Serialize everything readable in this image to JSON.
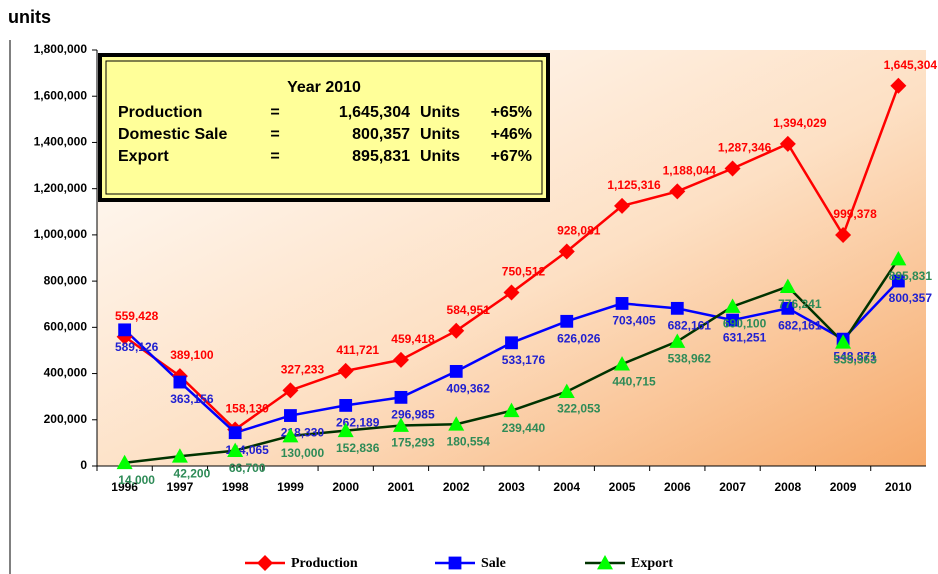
{
  "chart_data": {
    "type": "line",
    "y_label": "units",
    "categories": [
      "1996",
      "1997",
      "1998",
      "1999",
      "2000",
      "2001",
      "2002",
      "2003",
      "2004",
      "2005",
      "2006",
      "2007",
      "2008",
      "2009",
      "2010"
    ],
    "series": [
      {
        "name": "Production",
        "color": "#ff0000",
        "marker": "diamond",
        "label_color": "#ff0000",
        "values": [
          559428,
          389100,
          158130,
          327233,
          411721,
          459418,
          584951,
          750512,
          928081,
          1125316,
          1188044,
          1287346,
          1394029,
          999378,
          1645304
        ],
        "value_labels": [
          "559,428",
          "389,100",
          "158,130",
          "327,233",
          "411,721",
          "459,418",
          "584,951",
          "750,512",
          "928,081",
          "1,125,316",
          "1,188,044",
          "1,287,346",
          "1,394,029",
          "999,378",
          "1,645,304"
        ]
      },
      {
        "name": "Sale",
        "color": "#0000ff",
        "marker": "square",
        "label_color": "#2020d0",
        "values": [
          589126,
          363156,
          144065,
          218330,
          262189,
          296985,
          409362,
          533176,
          626026,
          703405,
          682161,
          631251,
          682161,
          548871,
          800357
        ],
        "value_labels": [
          "589,126",
          "363,156",
          "144,065",
          "218,330",
          "262,189",
          "296,985",
          "409,362",
          "533,176",
          "626,026",
          "703,405",
          "682,161",
          "631,251",
          "682,161",
          "548,871",
          "800,357"
        ]
      },
      {
        "name": "Export",
        "color": "#003300",
        "marker": "triangle",
        "marker_color": "#00ff00",
        "label_color": "#2e8b57",
        "values": [
          14000,
          42200,
          66700,
          130000,
          152836,
          175293,
          180554,
          239440,
          322053,
          440715,
          538962,
          690100,
          776241,
          535563,
          895831
        ],
        "value_labels": [
          "14,000",
          "42,200",
          "66,700",
          "130,000",
          "152,836",
          "175,293",
          "180,554",
          "239,440",
          "322,053",
          "440,715",
          "538,962",
          "690,100",
          "776,241",
          "535,563",
          "895,831"
        ]
      }
    ],
    "ylim": [
      0,
      1800000
    ],
    "yticks": [
      {
        "value": 0,
        "label": "0"
      },
      {
        "value": 200000,
        "label": "200,000"
      },
      {
        "value": 400000,
        "label": "400,000"
      },
      {
        "value": 600000,
        "label": "600,000"
      },
      {
        "value": 800000,
        "label": "800,000"
      },
      {
        "value": 1000000,
        "label": "1,000,000"
      },
      {
        "value": 1200000,
        "label": "1,200,000"
      },
      {
        "value": 1400000,
        "label": "1,400,000"
      },
      {
        "value": 1600000,
        "label": "1,600,000"
      },
      {
        "value": 1800000,
        "label": "1,800,000"
      }
    ],
    "legend": "bottom",
    "annotation": {
      "title": "Year 2010",
      "rows": [
        [
          "Production",
          "=",
          "1,645,304",
          "Units",
          "+65%"
        ],
        [
          "Domestic Sale",
          "=",
          "800,357",
          "Units",
          "+46%"
        ],
        [
          "Export",
          "=",
          "895,831",
          "Units",
          "+67%"
        ]
      ]
    }
  }
}
